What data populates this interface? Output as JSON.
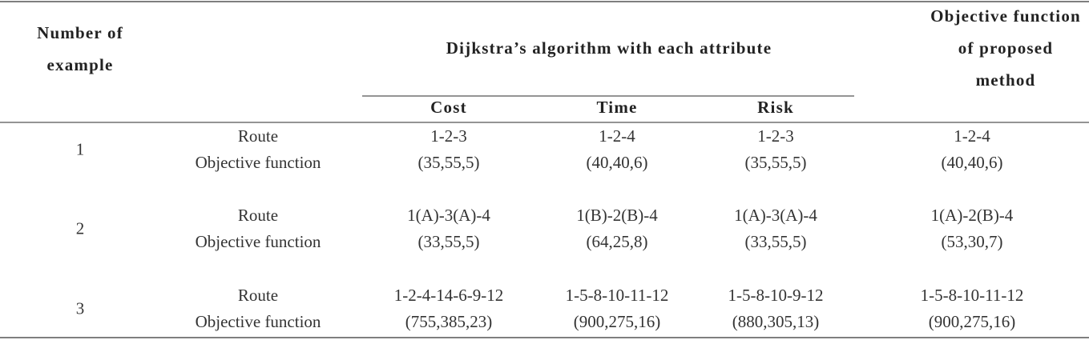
{
  "header": {
    "number_of_example": [
      "Number of",
      "example"
    ],
    "dijkstra": "Dijkstra’s algorithm with each attribute",
    "proposed": [
      "Objective function",
      "of proposed",
      "method"
    ],
    "attributes": [
      "Cost",
      "Time",
      "Risk"
    ]
  },
  "rows": [
    {
      "example": 1,
      "route_label": "Route",
      "objective_label": "Objective function",
      "routes": [
        "1-2-3",
        "1-2-4",
        "1-2-3",
        "1-2-4"
      ],
      "objectives": [
        "(35,55,5)",
        "(40,40,6)",
        "(35,55,5)",
        "(40,40,6)"
      ]
    },
    {
      "example": 2,
      "route_label": "Route",
      "objective_label": "Objective function",
      "routes": [
        "1(A)-3(A)-4",
        "1(B)-2(B)-4",
        "1(A)-3(A)-4",
        "1(A)-2(B)-4"
      ],
      "objectives": [
        "(33,55,5)",
        "(64,25,8)",
        "(33,55,5)",
        "(53,30,7)"
      ]
    },
    {
      "example": 3,
      "route_label": "Route",
      "objective_label": "Objective function",
      "routes": [
        "1-2-4-14-6-9-12",
        "1-5-8-10-11-12",
        "1-5-8-10-9-12",
        "1-5-8-10-11-12"
      ],
      "objectives": [
        "(755,385,23)",
        "(900,275,16)",
        "(880,305,13)",
        "(900,275,16)"
      ]
    }
  ]
}
